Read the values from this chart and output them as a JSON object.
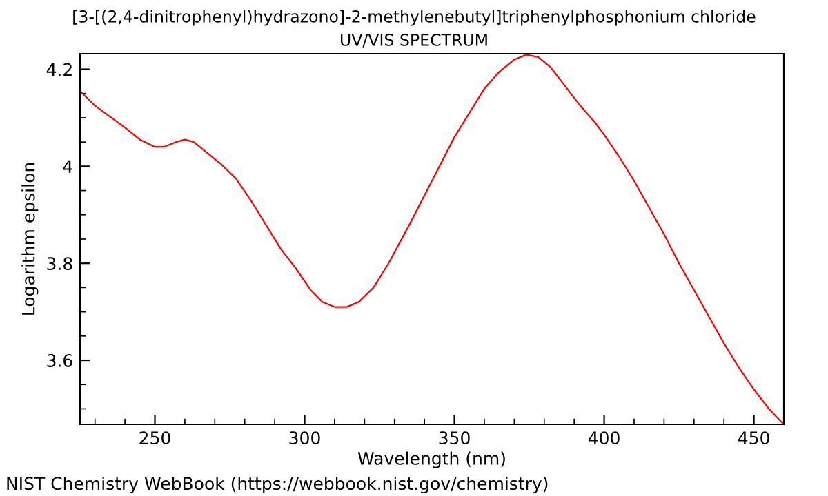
{
  "chart_data": {
    "type": "line",
    "title": "[3-[(2,4-dinitrophenyl)hydrazono]-2-methylenebutyl]triphenylphosphonium chloride",
    "subtitle": "UV/VIS SPECTRUM",
    "xlabel": "Wavelength (nm)",
    "ylabel": "Logarithm epsilon",
    "annotations": [
      "NIST Chemistry WebBook (https://webbook.nist.gov/chemistry)"
    ],
    "x": [
      225,
      230,
      240,
      245,
      250,
      253,
      257,
      260,
      263,
      268,
      272,
      277,
      282,
      287,
      292,
      297,
      302,
      306,
      310,
      314,
      318,
      323,
      328,
      335,
      340,
      345,
      350,
      355,
      360,
      365,
      370,
      374,
      378,
      382,
      387,
      392,
      397,
      400,
      405,
      410,
      415,
      420,
      425,
      430,
      435,
      440,
      445,
      450,
      455,
      460
    ],
    "series": [
      {
        "color": "#ff0000",
        "values": [
          4.155,
          4.125,
          4.08,
          4.055,
          4.04,
          4.04,
          4.05,
          4.055,
          4.05,
          4.025,
          4.005,
          3.975,
          3.93,
          3.88,
          3.83,
          3.79,
          3.745,
          3.72,
          3.71,
          3.71,
          3.72,
          3.75,
          3.8,
          3.88,
          3.94,
          4.0,
          4.06,
          4.11,
          4.16,
          4.195,
          4.22,
          4.23,
          4.225,
          4.205,
          4.165,
          4.125,
          4.09,
          4.065,
          4.02,
          3.97,
          3.915,
          3.86,
          3.8,
          3.745,
          3.69,
          3.635,
          3.585,
          3.54,
          3.5,
          3.468
        ]
      }
    ],
    "xlim": [
      225,
      460
    ],
    "ylim": [
      3.468,
      4.232
    ],
    "xticks": [
      250,
      300,
      350,
      400,
      450
    ],
    "yticks": [
      3.6,
      3.8,
      4,
      4.2
    ],
    "grid": false,
    "legend": false,
    "marker": "none",
    "line_style": "solid"
  }
}
